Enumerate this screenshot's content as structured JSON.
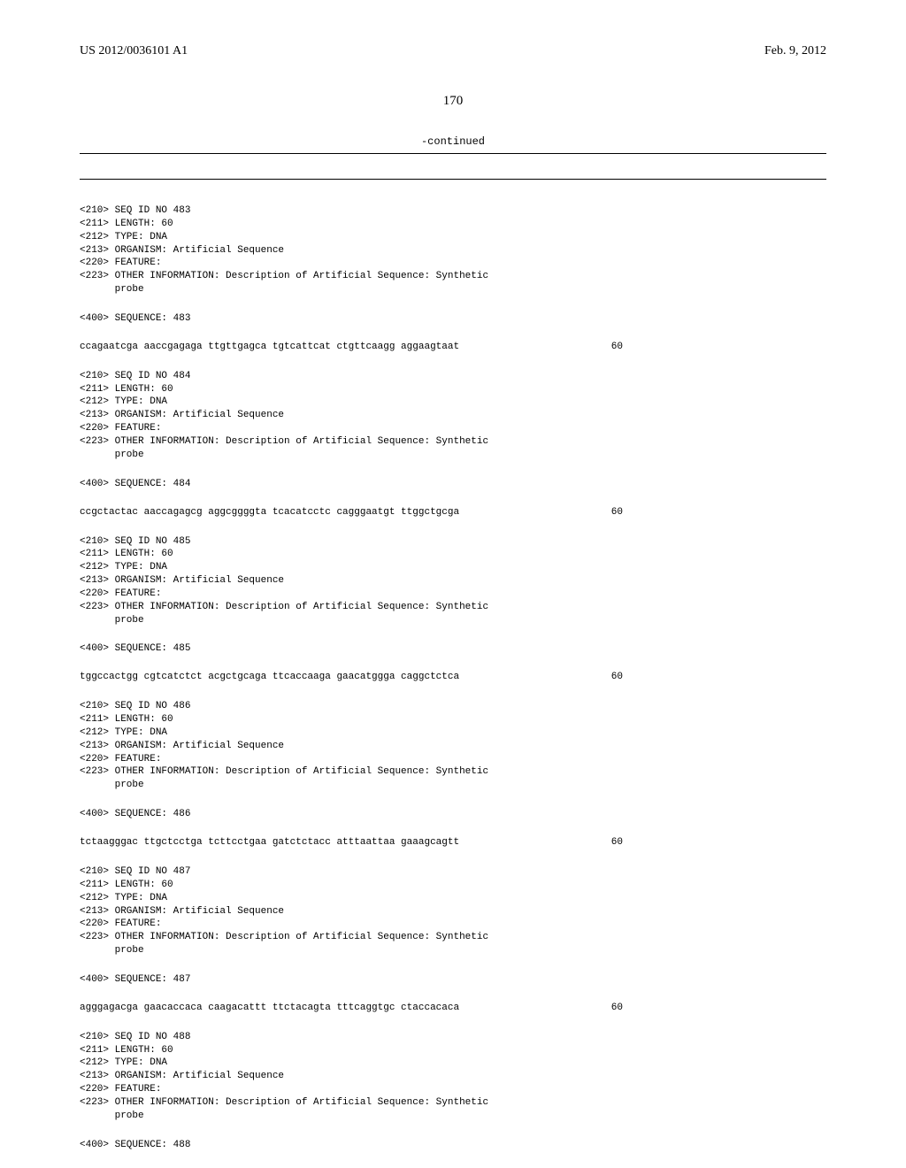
{
  "header": {
    "pub_number": "US 2012/0036101 A1",
    "pub_date": "Feb. 9, 2012"
  },
  "page_number": "170",
  "continued_label": "-continued",
  "entries": [
    {
      "meta": "<210> SEQ ID NO 483\n<211> LENGTH: 60\n<212> TYPE: DNA\n<213> ORGANISM: Artificial Sequence\n<220> FEATURE:\n<223> OTHER INFORMATION: Description of Artificial Sequence: Synthetic\n      probe",
      "seq_label": "<400> SEQUENCE: 483",
      "sequence": "ccagaatcga aaccgagaga ttgttgagca tgtcattcat ctgttcaagg aggaagtaat",
      "length": "60"
    },
    {
      "meta": "<210> SEQ ID NO 484\n<211> LENGTH: 60\n<212> TYPE: DNA\n<213> ORGANISM: Artificial Sequence\n<220> FEATURE:\n<223> OTHER INFORMATION: Description of Artificial Sequence: Synthetic\n      probe",
      "seq_label": "<400> SEQUENCE: 484",
      "sequence": "ccgctactac aaccagagcg aggcggggta tcacatcctc cagggaatgt ttggctgcga",
      "length": "60"
    },
    {
      "meta": "<210> SEQ ID NO 485\n<211> LENGTH: 60\n<212> TYPE: DNA\n<213> ORGANISM: Artificial Sequence\n<220> FEATURE:\n<223> OTHER INFORMATION: Description of Artificial Sequence: Synthetic\n      probe",
      "seq_label": "<400> SEQUENCE: 485",
      "sequence": "tggccactgg cgtcatctct acgctgcaga ttcaccaaga gaacatggga caggctctca",
      "length": "60"
    },
    {
      "meta": "<210> SEQ ID NO 486\n<211> LENGTH: 60\n<212> TYPE: DNA\n<213> ORGANISM: Artificial Sequence\n<220> FEATURE:\n<223> OTHER INFORMATION: Description of Artificial Sequence: Synthetic\n      probe",
      "seq_label": "<400> SEQUENCE: 486",
      "sequence": "tctaagggac ttgctcctga tcttcctgaa gatctctacc atttaattaa gaaagcagtt",
      "length": "60"
    },
    {
      "meta": "<210> SEQ ID NO 487\n<211> LENGTH: 60\n<212> TYPE: DNA\n<213> ORGANISM: Artificial Sequence\n<220> FEATURE:\n<223> OTHER INFORMATION: Description of Artificial Sequence: Synthetic\n      probe",
      "seq_label": "<400> SEQUENCE: 487",
      "sequence": "agggagacga gaacaccaca caagacattt ttctacagta tttcaggtgc ctaccacaca",
      "length": "60"
    },
    {
      "meta": "<210> SEQ ID NO 488\n<211> LENGTH: 60\n<212> TYPE: DNA\n<213> ORGANISM: Artificial Sequence\n<220> FEATURE:\n<223> OTHER INFORMATION: Description of Artificial Sequence: Synthetic\n      probe",
      "seq_label": "<400> SEQUENCE: 488",
      "sequence": "",
      "length": ""
    }
  ]
}
